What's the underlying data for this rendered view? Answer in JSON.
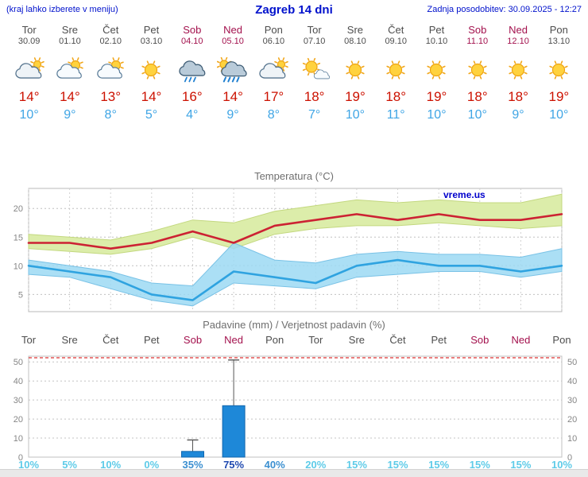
{
  "header": {
    "hint": "(kraj lahko izberete v meniju)",
    "title": "Zagreb 14 dni",
    "updated": "Zadnja posodobitev: 30.09.2025 - 12:27"
  },
  "colors": {
    "header_blue": "#0011cc",
    "weekday": "#4d4d4d",
    "weekend": "#a3114d",
    "tmax": "#cc1100",
    "tmin": "#3fa5e5"
  },
  "days": [
    {
      "name": "Tor",
      "date": "30.09",
      "weekend": false,
      "icon": "mostly-cloudy",
      "tmax": "14°",
      "tmin": "10°"
    },
    {
      "name": "Sre",
      "date": "01.10",
      "weekend": false,
      "icon": "partly-cloudy",
      "tmax": "14°",
      "tmin": "9°"
    },
    {
      "name": "Čet",
      "date": "02.10",
      "weekend": false,
      "icon": "partly-cloudy",
      "tmax": "13°",
      "tmin": "8°"
    },
    {
      "name": "Pet",
      "date": "03.10",
      "weekend": false,
      "icon": "sunny",
      "tmax": "14°",
      "tmin": "5°"
    },
    {
      "name": "Sob",
      "date": "04.10",
      "weekend": true,
      "icon": "rain",
      "tmax": "16°",
      "tmin": "4°"
    },
    {
      "name": "Ned",
      "date": "05.10",
      "weekend": true,
      "icon": "rain-sun",
      "tmax": "14°",
      "tmin": "9°"
    },
    {
      "name": "Pon",
      "date": "06.10",
      "weekend": false,
      "icon": "mostly-cloudy",
      "tmax": "17°",
      "tmin": "8°"
    },
    {
      "name": "Tor",
      "date": "07.10",
      "weekend": false,
      "icon": "mostly-sunny",
      "tmax": "18°",
      "tmin": "7°"
    },
    {
      "name": "Sre",
      "date": "08.10",
      "weekend": false,
      "icon": "sunny",
      "tmax": "19°",
      "tmin": "10°"
    },
    {
      "name": "Čet",
      "date": "09.10",
      "weekend": false,
      "icon": "sunny",
      "tmax": "18°",
      "tmin": "11°"
    },
    {
      "name": "Pet",
      "date": "10.10",
      "weekend": false,
      "icon": "sunny",
      "tmax": "19°",
      "tmin": "10°"
    },
    {
      "name": "Sob",
      "date": "11.10",
      "weekend": true,
      "icon": "sunny",
      "tmax": "18°",
      "tmin": "10°"
    },
    {
      "name": "Ned",
      "date": "12.10",
      "weekend": true,
      "icon": "sunny",
      "tmax": "18°",
      "tmin": "9°"
    },
    {
      "name": "Pon",
      "date": "13.10",
      "weekend": false,
      "icon": "sunny",
      "tmax": "19°",
      "tmin": "10°"
    }
  ],
  "chart_data": [
    {
      "type": "line",
      "title": "Temperatura (°C)",
      "x": [
        "Tor 30.09",
        "Sre 01.10",
        "Čet 02.10",
        "Pet 03.10",
        "Sob 04.10",
        "Ned 05.10",
        "Pon 06.10",
        "Tor 07.10",
        "Sre 08.10",
        "Čet 09.10",
        "Pet 10.10",
        "Sob 11.10",
        "Ned 12.10",
        "Pon 13.10"
      ],
      "ylim": [
        2,
        23.5
      ],
      "yticks": [
        5,
        10,
        15,
        20
      ],
      "grid": true,
      "watermark": "vreme.us",
      "series": [
        {
          "name": "tmax",
          "color": "#cc2233",
          "values": [
            14,
            14,
            13,
            14,
            16,
            14,
            17,
            18,
            19,
            18,
            19,
            18,
            18,
            19
          ]
        },
        {
          "name": "tmin",
          "color": "#2fa3e0",
          "values": [
            10,
            9,
            8,
            5,
            4,
            9,
            8,
            7,
            10,
            11,
            10,
            10,
            9,
            10
          ]
        }
      ],
      "bands": [
        {
          "name": "tmax-range",
          "color": "#dcedaa",
          "edge": "#c3d87f",
          "opacity": 1,
          "upper": [
            15.5,
            15,
            14.5,
            16,
            18,
            17.5,
            19.5,
            20.5,
            21.5,
            21,
            21.5,
            21,
            21,
            22.5
          ],
          "lower": [
            13,
            12.5,
            12,
            13,
            15,
            13,
            15.5,
            16.5,
            17,
            17,
            17.5,
            17,
            16.5,
            17
          ]
        },
        {
          "name": "tmin-range",
          "color": "#9cd9f3",
          "edge": "#79c2e6",
          "opacity": 0.85,
          "upper": [
            11,
            10,
            9,
            7,
            6.5,
            14,
            11,
            10.5,
            12,
            12.5,
            12,
            12,
            11.5,
            13
          ],
          "lower": [
            8.5,
            8,
            6,
            4,
            3,
            7,
            6.5,
            6,
            8,
            8.5,
            9,
            9,
            8,
            9
          ]
        }
      ]
    },
    {
      "type": "bar",
      "title": "Padavine (mm) / Verjetnost padavin (%)",
      "categories": [
        "Tor",
        "Sre",
        "Čet",
        "Pet",
        "Sob",
        "Ned",
        "Pon",
        "Tor",
        "Sre",
        "Čet",
        "Pet",
        "Sob",
        "Ned",
        "Pon"
      ],
      "weekend": [
        false,
        false,
        false,
        false,
        true,
        true,
        false,
        false,
        false,
        false,
        false,
        true,
        true,
        false
      ],
      "values_mm": [
        0,
        0,
        0,
        0,
        3,
        27,
        0,
        0,
        0,
        0,
        0,
        0,
        0,
        0
      ],
      "whisker_max": [
        0,
        0,
        0,
        0,
        9,
        51,
        0,
        0,
        0,
        0,
        0,
        0,
        0,
        0
      ],
      "probability_pct": [
        10,
        5,
        10,
        0,
        35,
        75,
        40,
        20,
        15,
        15,
        15,
        15,
        15,
        10
      ],
      "ylim": [
        0,
        53
      ],
      "yticks": [
        0,
        10,
        20,
        30,
        40,
        50
      ],
      "bar_color": "#1e88d8",
      "bar_edge": "#1266ad",
      "whisker_color": "#555555",
      "limit_line_color": "#dd3333",
      "prob_colors": {
        "low": "#5ecbe8",
        "mid": "#3b8fd0",
        "high": "#1f49b0"
      }
    }
  ]
}
